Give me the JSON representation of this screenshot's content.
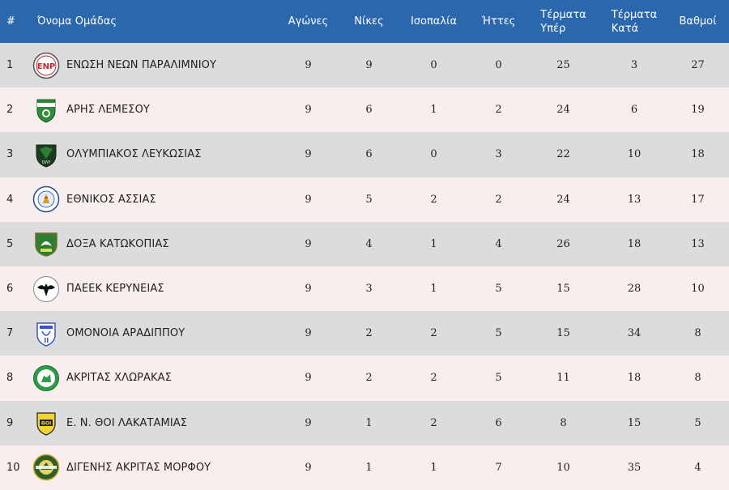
{
  "table": {
    "headers": {
      "pos": "#",
      "team": "Όνομα Ομάδας",
      "played": "Αγώνες",
      "wins": "Νίκες",
      "draws": "Ισοπαλία",
      "losses": "Ήττες",
      "goals_for_1": "Τέρματα",
      "goals_for_2": "Υπέρ",
      "goals_against_1": "Τέρματα",
      "goals_against_2": "Κατά",
      "points": "Βαθμοί"
    },
    "rows": [
      {
        "pos": "1",
        "team": "ΕΝΩΣΗ ΝΕΩΝ ΠΑΡΑΛΙΜΝΙΟΥ",
        "logo": "enp-crest-icon",
        "played": "9",
        "wins": "9",
        "draws": "0",
        "losses": "0",
        "gf": "25",
        "ga": "3",
        "pts": "27"
      },
      {
        "pos": "2",
        "team": "ΑΡΗΣ ΛΕΜΕΣΟΥ",
        "logo": "aris-crest-icon",
        "played": "9",
        "wins": "6",
        "draws": "1",
        "losses": "2",
        "gf": "24",
        "ga": "6",
        "pts": "19"
      },
      {
        "pos": "3",
        "team": "ΟΛΥΜΠΙΑΚΟΣ ΛΕΥΚΩΣΙΑΣ",
        "logo": "olympiakos-crest-icon",
        "played": "9",
        "wins": "6",
        "draws": "0",
        "losses": "3",
        "gf": "22",
        "ga": "10",
        "pts": "18"
      },
      {
        "pos": "4",
        "team": "ΕΘΝΙΚΟΣ ΑΣΣΙΑΣ",
        "logo": "ethnikos-crest-icon",
        "played": "9",
        "wins": "5",
        "draws": "2",
        "losses": "2",
        "gf": "24",
        "ga": "13",
        "pts": "17"
      },
      {
        "pos": "5",
        "team": "ΔΟΞΑ ΚΑΤΩΚΟΠΙΑΣ",
        "logo": "doxa-crest-icon",
        "played": "9",
        "wins": "4",
        "draws": "1",
        "losses": "4",
        "gf": "26",
        "ga": "18",
        "pts": "13"
      },
      {
        "pos": "6",
        "team": "ΠΑΕΕΚ ΚΕΡΥΝΕΙΑΣ",
        "logo": "paeek-crest-icon",
        "played": "9",
        "wins": "3",
        "draws": "1",
        "losses": "5",
        "gf": "15",
        "ga": "28",
        "pts": "10"
      },
      {
        "pos": "7",
        "team": "ΟΜΟΝΟΙΑ ΑΡΑΔΙΠΠΟΥ",
        "logo": "omonoia-crest-icon",
        "played": "9",
        "wins": "2",
        "draws": "2",
        "losses": "5",
        "gf": "15",
        "ga": "34",
        "pts": "8"
      },
      {
        "pos": "8",
        "team": "ΑΚΡΙΤΑΣ ΧΛΩΡΑΚΑΣ",
        "logo": "akritas-crest-icon",
        "played": "9",
        "wins": "2",
        "draws": "2",
        "losses": "5",
        "gf": "11",
        "ga": "18",
        "pts": "8"
      },
      {
        "pos": "9",
        "team": "Ε. Ν. ΘΟΙ ΛΑΚΑΤΑΜΙΑΣ",
        "logo": "thoi-crest-icon",
        "played": "9",
        "wins": "1",
        "draws": "2",
        "losses": "6",
        "gf": "8",
        "ga": "15",
        "pts": "5"
      },
      {
        "pos": "10",
        "team": "ΔΙΓΕΝΗΣ ΑΚΡΙΤΑΣ ΜΟΡΦΟΥ",
        "logo": "digenis-crest-icon",
        "played": "9",
        "wins": "1",
        "draws": "1",
        "losses": "7",
        "gf": "10",
        "ga": "35",
        "pts": "4"
      }
    ]
  },
  "colors": {
    "header_bg": "#2a67ad",
    "row_odd": "#dcdcdc",
    "row_even": "#f8eeee"
  }
}
